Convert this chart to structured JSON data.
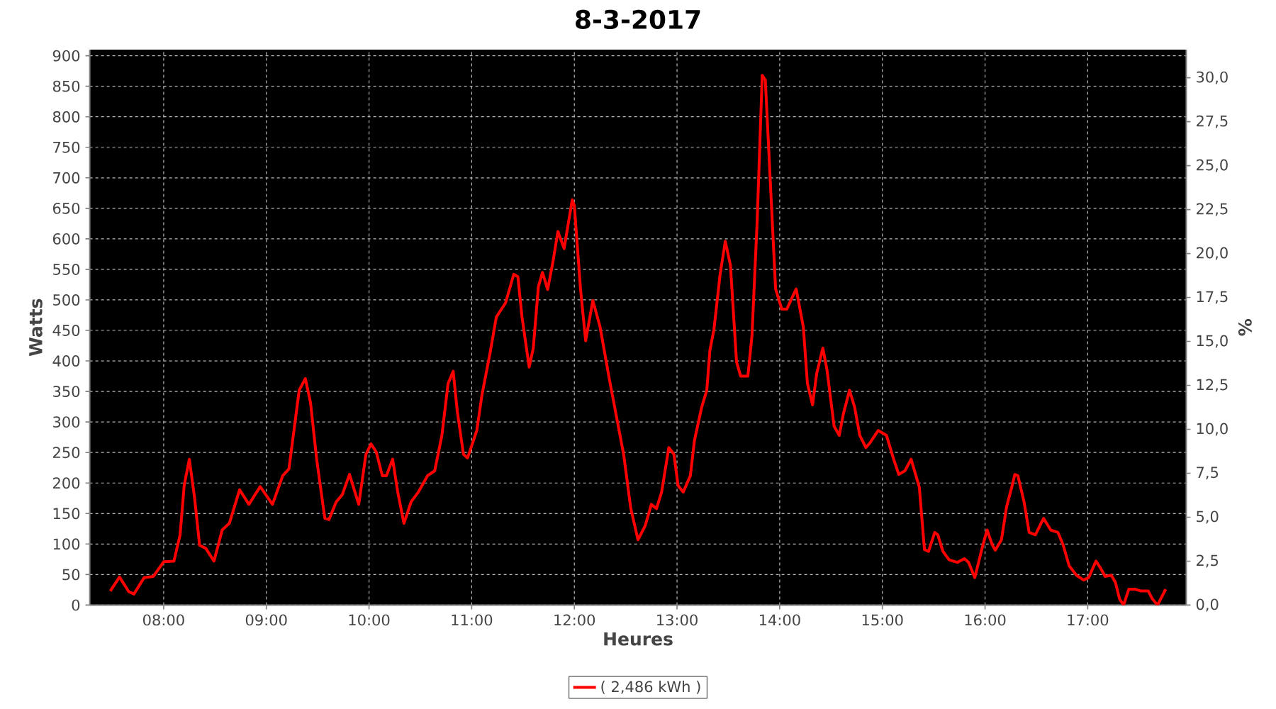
{
  "chart_data": {
    "type": "line",
    "title": "8-3-2017",
    "xlabel": "Heures",
    "ylabel": "Watts",
    "y2label": "%",
    "xlim": [
      7.28,
      17.96
    ],
    "xticks": [
      {
        "value": 8,
        "label": "08:00"
      },
      {
        "value": 9,
        "label": "09:00"
      },
      {
        "value": 10,
        "label": "10:00"
      },
      {
        "value": 11,
        "label": "11:00"
      },
      {
        "value": 12,
        "label": "12:00"
      },
      {
        "value": 13,
        "label": "13:00"
      },
      {
        "value": 14,
        "label": "14:00"
      },
      {
        "value": 15,
        "label": "15:00"
      },
      {
        "value": 16,
        "label": "16:00"
      },
      {
        "value": 17,
        "label": "17:00"
      }
    ],
    "ylim": [
      0,
      910
    ],
    "yticks": [
      0,
      50,
      100,
      150,
      200,
      250,
      300,
      350,
      400,
      450,
      500,
      550,
      600,
      650,
      700,
      750,
      800,
      850,
      900
    ],
    "y2lim": [
      0,
      31.6
    ],
    "y2ticks": [
      {
        "value": 0,
        "label": "0,0"
      },
      {
        "value": 2.5,
        "label": "2,5"
      },
      {
        "value": 5,
        "label": "5,0"
      },
      {
        "value": 7.5,
        "label": "7,5"
      },
      {
        "value": 10,
        "label": "10,0"
      },
      {
        "value": 12.5,
        "label": "12,5"
      },
      {
        "value": 15,
        "label": "15,0"
      },
      {
        "value": 17.5,
        "label": "17,5"
      },
      {
        "value": 20,
        "label": "20,0"
      },
      {
        "value": 22.5,
        "label": "22,5"
      },
      {
        "value": 25,
        "label": "25,0"
      },
      {
        "value": 27.5,
        "label": "27,5"
      },
      {
        "value": 30,
        "label": "30,0"
      }
    ],
    "grid": true,
    "legend": "bottom",
    "line_style": "solid",
    "x": [
      7.48,
      7.57,
      7.66,
      7.71,
      7.81,
      7.9,
      8.0,
      8.1,
      8.16,
      8.2,
      8.25,
      8.3,
      8.35,
      8.41,
      8.49,
      8.57,
      8.64,
      8.74,
      8.83,
      8.94,
      9.06,
      9.16,
      9.22,
      9.32,
      9.38,
      9.43,
      9.49,
      9.57,
      9.61,
      9.68,
      9.74,
      9.81,
      9.9,
      9.97,
      10.02,
      10.07,
      10.13,
      10.17,
      10.23,
      10.28,
      10.34,
      10.41,
      10.48,
      10.57,
      10.64,
      10.71,
      10.77,
      10.82,
      10.86,
      10.92,
      10.96,
      11.05,
      11.1,
      11.18,
      11.24,
      11.33,
      11.41,
      11.45,
      11.49,
      11.56,
      11.6,
      11.65,
      11.69,
      11.74,
      11.79,
      11.84,
      11.9,
      11.98,
      12.0,
      12.06,
      12.11,
      12.18,
      12.25,
      12.34,
      12.41,
      12.48,
      12.55,
      12.62,
      12.69,
      12.75,
      12.8,
      12.85,
      12.92,
      12.97,
      13.01,
      13.06,
      13.13,
      13.17,
      13.24,
      13.29,
      13.32,
      13.36,
      13.42,
      13.47,
      13.52,
      13.58,
      13.62,
      13.69,
      13.73,
      13.78,
      13.83,
      13.86,
      13.91,
      13.96,
      14.02,
      14.07,
      14.16,
      14.23,
      14.27,
      14.32,
      14.36,
      14.42,
      14.46,
      14.53,
      14.58,
      14.62,
      14.68,
      14.73,
      14.78,
      14.84,
      14.88,
      14.96,
      15.04,
      15.11,
      15.16,
      15.22,
      15.28,
      15.36,
      15.41,
      15.45,
      15.51,
      15.54,
      15.59,
      15.65,
      15.73,
      15.8,
      15.84,
      15.9,
      15.98,
      16.02,
      16.07,
      16.1,
      16.16,
      16.21,
      16.26,
      16.29,
      16.32,
      16.38,
      16.43,
      16.49,
      16.57,
      16.64,
      16.71,
      16.76,
      16.82,
      16.89,
      16.96,
      17.01,
      17.08,
      17.12,
      17.17,
      17.23,
      17.27,
      17.31,
      17.35,
      17.4,
      17.46,
      17.52,
      17.59,
      17.63,
      17.68,
      17.76
    ],
    "series": [
      {
        "name": "( 2,486 kWh )",
        "color": "#ff0000",
        "values": [
          23,
          46,
          22,
          18,
          45,
          47,
          71,
          72,
          115,
          196,
          239,
          177,
          98,
          93,
          72,
          123,
          134,
          189,
          165,
          194,
          165,
          212,
          223,
          352,
          371,
          332,
          239,
          142,
          140,
          169,
          181,
          214,
          165,
          247,
          264,
          251,
          212,
          212,
          239,
          185,
          134,
          169,
          185,
          212,
          220,
          278,
          363,
          383,
          317,
          247,
          241,
          286,
          344,
          414,
          472,
          495,
          542,
          538,
          472,
          390,
          421,
          522,
          545,
          517,
          561,
          612,
          584,
          664,
          654,
          518,
          433,
          499,
          456,
          371,
          309,
          247,
          158,
          107,
          130,
          165,
          158,
          185,
          258,
          247,
          196,
          185,
          212,
          270,
          324,
          352,
          417,
          452,
          542,
          596,
          557,
          398,
          375,
          375,
          441,
          627,
          868,
          860,
          689,
          518,
          485,
          485,
          518,
          456,
          363,
          328,
          379,
          421,
          386,
          293,
          278,
          313,
          352,
          324,
          278,
          258,
          266,
          286,
          278,
          239,
          214,
          220,
          239,
          193,
          91,
          88,
          119,
          115,
          88,
          74,
          70,
          76,
          70,
          45,
          99,
          123,
          99,
          90,
          107,
          161,
          193,
          214,
          212,
          169,
          119,
          115,
          142,
          123,
          119,
          99,
          64,
          49,
          41,
          45,
          72,
          62,
          47,
          49,
          37,
          10,
          0,
          26,
          26,
          23,
          23,
          10,
          0,
          26
        ]
      }
    ]
  }
}
